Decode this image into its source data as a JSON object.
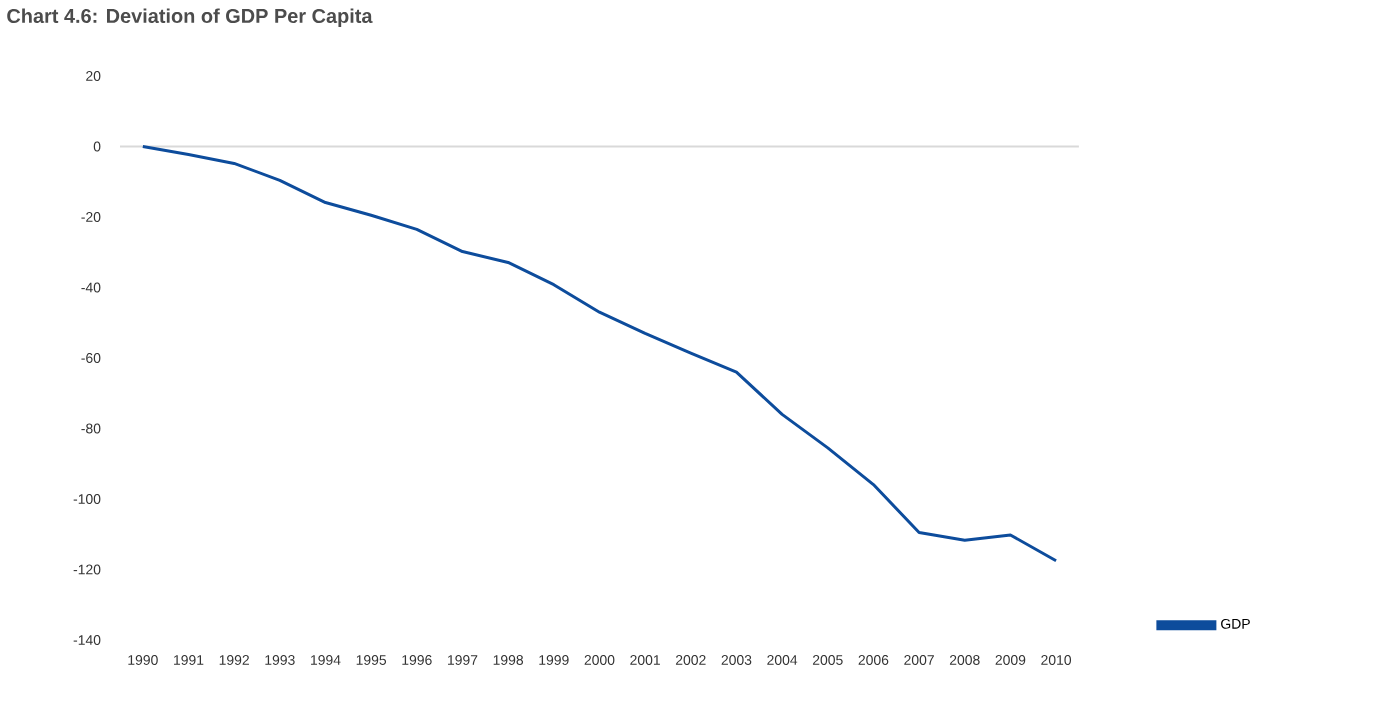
{
  "chart_data": {
    "type": "line",
    "title": "Chart 4.6: Deviation of GDP Per Capita",
    "categories": [
      "1990",
      "1991",
      "1992",
      "1993",
      "1994",
      "1995",
      "1996",
      "1997",
      "1998",
      "1999",
      "2000",
      "2001",
      "2002",
      "2003",
      "2004",
      "2005",
      "2006",
      "2007",
      "2008",
      "2009",
      "2010"
    ],
    "series": [
      {
        "name": "GDP",
        "color": "#0d4c9c",
        "values": [
          0,
          -2.3,
          -4.8,
          -9.6,
          -15.9,
          -19.5,
          -23.5,
          -29.8,
          -32.9,
          -39.2,
          -47,
          -53,
          -58.6,
          -64,
          -76,
          -85.5,
          -95.9,
          -109.5,
          -111.7,
          -110.2,
          -117.5
        ]
      }
    ],
    "ylim": [
      -140,
      20
    ],
    "yticks": [
      -140,
      -120,
      -100,
      -80,
      -60,
      -40,
      -20,
      0,
      20
    ],
    "ref_lines": [
      {
        "axis": "y",
        "value": 0,
        "color": "#d9d9d9"
      }
    ],
    "legend": "bottom right",
    "grid": false,
    "marker": "none",
    "line_style": "solid"
  }
}
